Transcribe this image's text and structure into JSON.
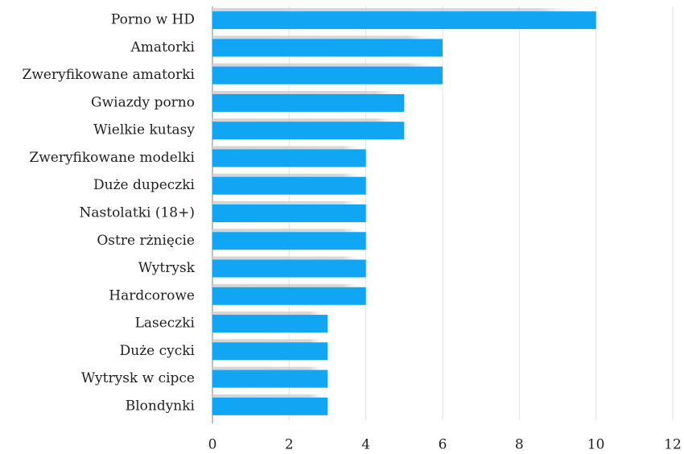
{
  "chart_data": {
    "type": "bar",
    "orientation": "horizontal",
    "categories": [
      "Porno w HD",
      "Amatorki",
      "Zweryfikowane amatorki",
      "Gwiazdy porno",
      "Wielkie kutasy",
      "Zweryfikowane modelki",
      "Duże dupeczki",
      "Nastolatki (18+)",
      "Ostre rżnięcie",
      "Wytrysk",
      "Hardcorowe",
      "Laseczki",
      "Duże cycki",
      "Wytrysk w cipce",
      "Blondynki"
    ],
    "values": [
      10,
      6,
      6,
      5,
      5,
      4,
      4,
      4,
      4,
      4,
      4,
      3,
      3,
      3,
      3
    ],
    "color": "#10a6f4",
    "xlim": [
      0,
      12
    ],
    "xticks": [
      0,
      2,
      4,
      6,
      8,
      10,
      12
    ],
    "grid": true
  }
}
